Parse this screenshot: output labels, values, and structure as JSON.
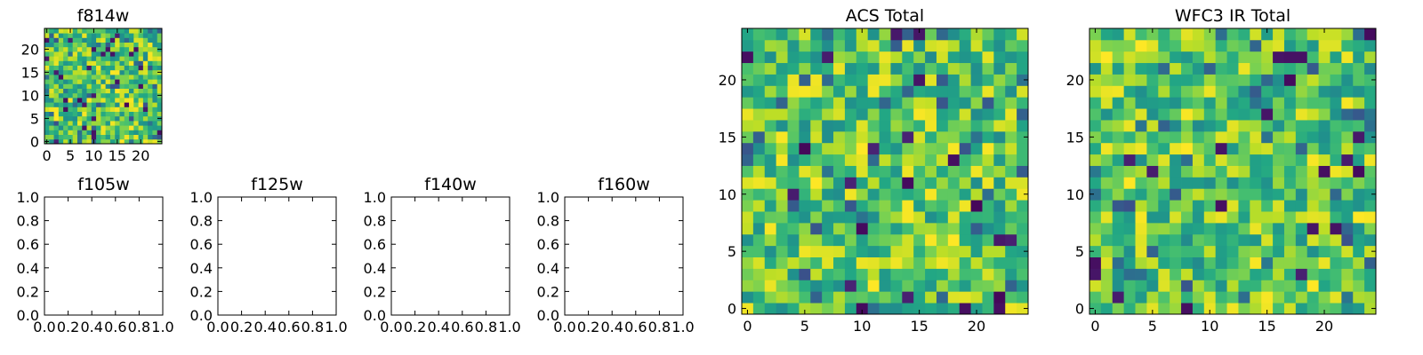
{
  "chart_data": [
    {
      "id": "f814w",
      "type": "heatmap",
      "title": "f814w",
      "grid_size": 25,
      "xlim": [
        -0.5,
        24.5
      ],
      "ylim": [
        -0.5,
        24.5
      ],
      "xticks": [
        0,
        5,
        10,
        15,
        20
      ],
      "yticks": [
        0,
        5,
        10,
        15,
        20
      ],
      "colormap": "viridis",
      "seed": 814,
      "dark_fraction": 0.05,
      "values": []
    },
    {
      "id": "f105w",
      "type": "empty",
      "title": "f105w",
      "xlim": [
        0,
        1
      ],
      "ylim": [
        0,
        1
      ],
      "xticks": [
        "0.0",
        "0.2",
        "0.4",
        "0.6",
        "0.8",
        "1.0"
      ],
      "yticks": [
        "0.0",
        "0.2",
        "0.4",
        "0.6",
        "0.8",
        "1.0"
      ]
    },
    {
      "id": "f125w",
      "type": "empty",
      "title": "f125w",
      "xlim": [
        0,
        1
      ],
      "ylim": [
        0,
        1
      ],
      "xticks": [
        "0.0",
        "0.2",
        "0.4",
        "0.6",
        "0.8",
        "1.0"
      ],
      "yticks": [
        "0.0",
        "0.2",
        "0.4",
        "0.6",
        "0.8",
        "1.0"
      ]
    },
    {
      "id": "f140w",
      "type": "empty",
      "title": "f140w",
      "xlim": [
        0,
        1
      ],
      "ylim": [
        0,
        1
      ],
      "xticks": [
        "0.0",
        "0.2",
        "0.4",
        "0.6",
        "0.8",
        "1.0"
      ],
      "yticks": [
        "0.0",
        "0.2",
        "0.4",
        "0.6",
        "0.8",
        "1.0"
      ]
    },
    {
      "id": "f160w",
      "type": "empty",
      "title": "f160w",
      "xlim": [
        0,
        1
      ],
      "ylim": [
        0,
        1
      ],
      "xticks": [
        "0.0",
        "0.2",
        "0.4",
        "0.6",
        "0.8",
        "1.0"
      ],
      "yticks": [
        "0.0",
        "0.2",
        "0.4",
        "0.6",
        "0.8",
        "1.0"
      ]
    },
    {
      "id": "acs-total",
      "type": "heatmap",
      "title": "ACS Total",
      "grid_size": 25,
      "xlim": [
        -0.5,
        24.5
      ],
      "ylim": [
        -0.5,
        24.5
      ],
      "xticks": [
        0,
        5,
        10,
        15,
        20
      ],
      "yticks": [
        0,
        5,
        10,
        15,
        20
      ],
      "colormap": "viridis",
      "seed": 1771,
      "dark_fraction": 0.03,
      "values": []
    },
    {
      "id": "wfc3-ir-total",
      "type": "heatmap",
      "title": "WFC3 IR Total",
      "grid_size": 25,
      "xlim": [
        -0.5,
        24.5
      ],
      "ylim": [
        -0.5,
        24.5
      ],
      "xticks": [
        0,
        5,
        10,
        15,
        20
      ],
      "yticks": [
        0,
        5,
        10,
        15,
        20
      ],
      "colormap": "viridis",
      "seed": 3309,
      "dark_fraction": 0.035,
      "values": []
    }
  ]
}
